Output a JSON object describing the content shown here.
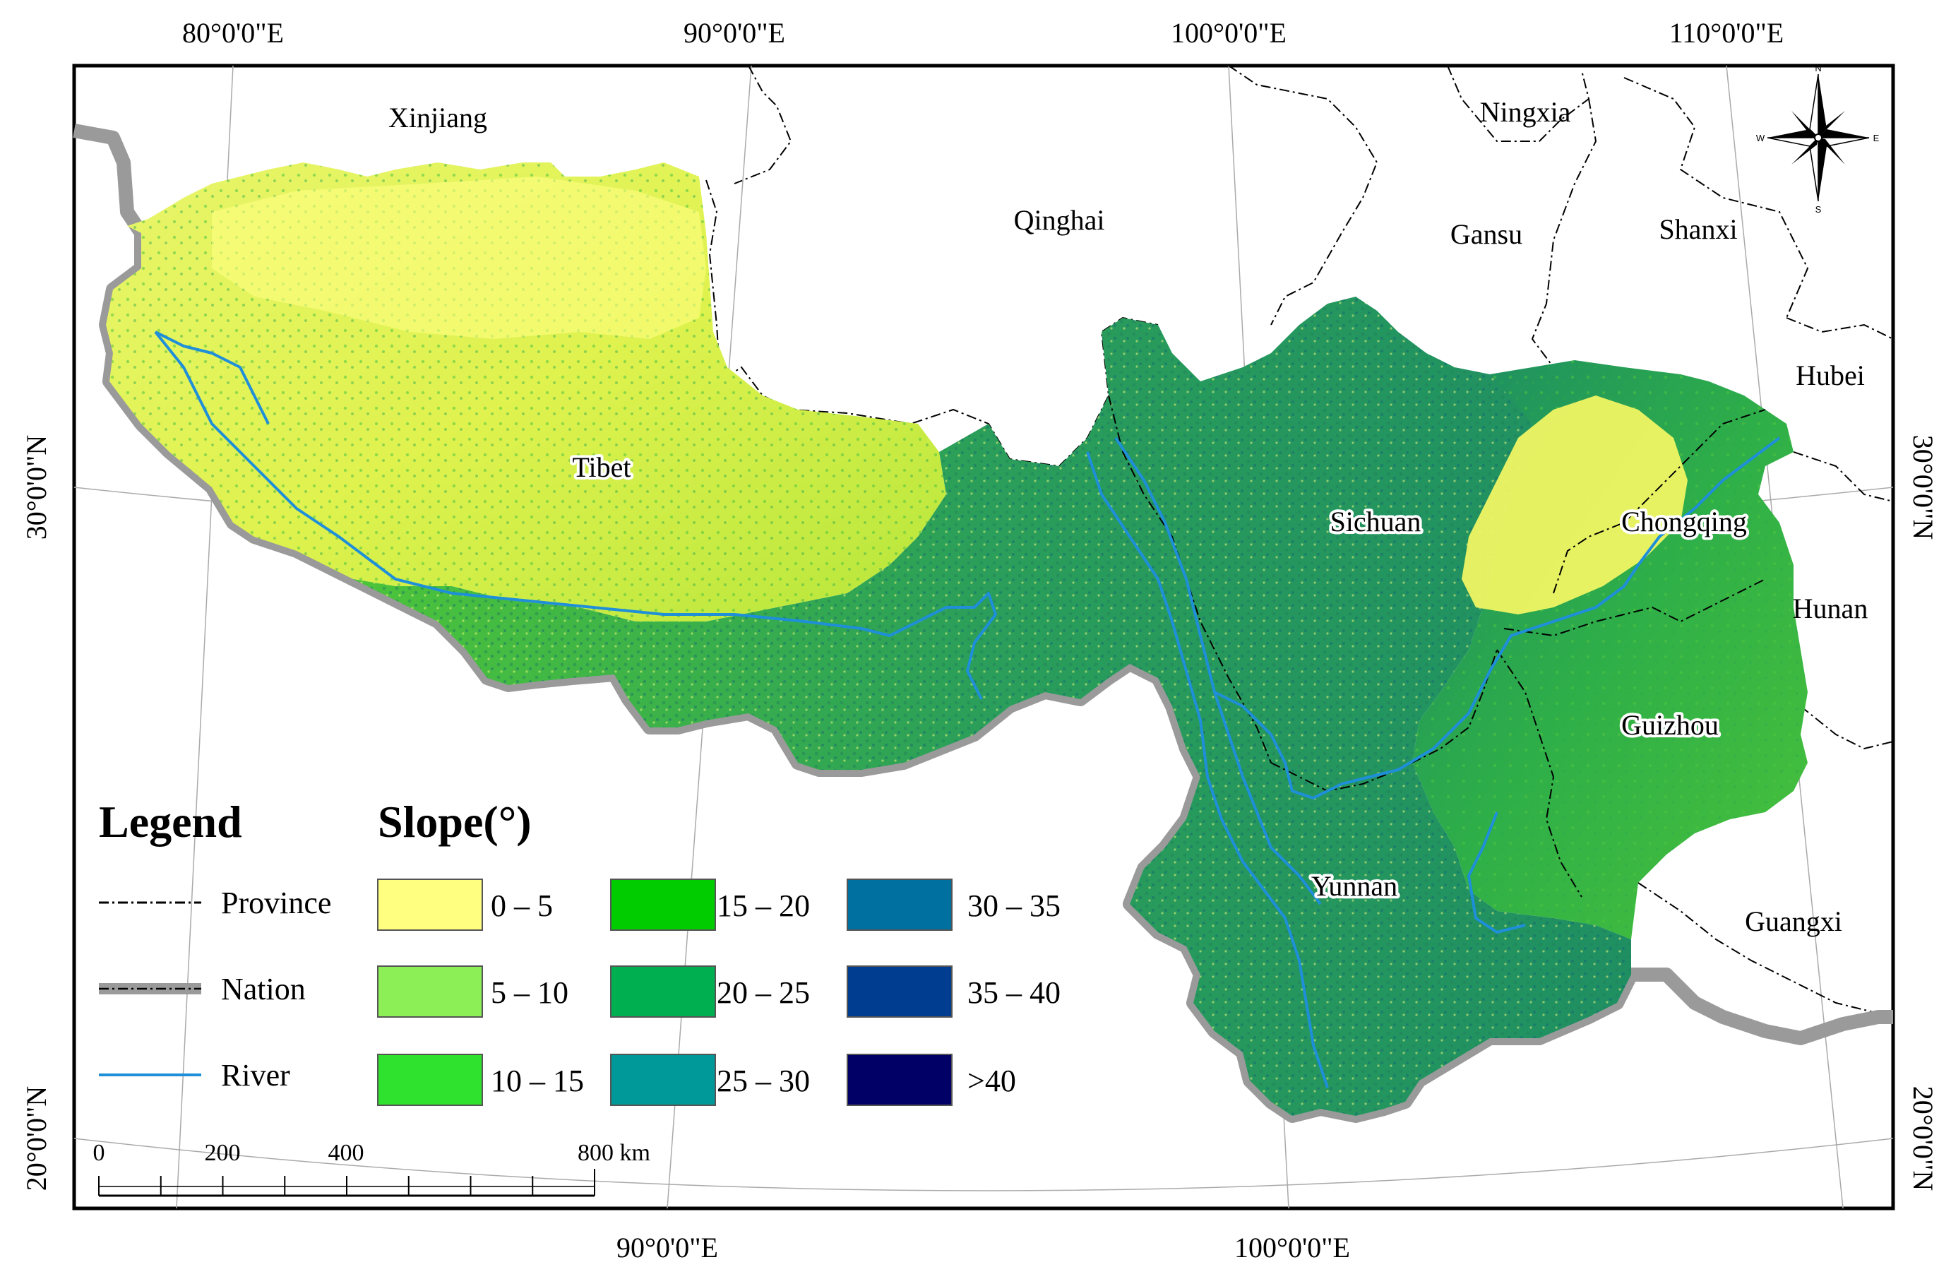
{
  "map": {
    "top_longitudes": [
      "80°0'0\"E",
      "90°0'0\"E",
      "100°0'0\"E",
      "110°0'0\"E"
    ],
    "bottom_longitudes": [
      "90°0'0\"E",
      "100°0'0\"E"
    ],
    "left_latitudes": [
      "30°0'0\"N",
      "20°0'0\"N"
    ],
    "right_latitudes": [
      "30°0'0\"N",
      "20°0'0\"N"
    ],
    "places": {
      "xinjiang": "Xinjiang",
      "qinghai": "Qinghai",
      "ningxia": "Ningxia",
      "gansu": "Gansu",
      "shanxi": "Shanxi",
      "hubei": "Hubei",
      "tibet": "Tibet",
      "sichuan": "Sichuan",
      "chongqing": "Chongqing",
      "hunan": "Hunan",
      "guizhou": "Guizhou",
      "yunnan": "Yunnan",
      "guangxi": "Guangxi"
    },
    "compass": {
      "n": "N",
      "s": "S",
      "e": "E",
      "w": "W"
    }
  },
  "legend": {
    "title": "Legend",
    "items": {
      "province": "Province",
      "nation": "Nation",
      "river": "River"
    },
    "slope_title": "Slope(°)",
    "slope_classes": [
      {
        "label": "0 – 5",
        "color": "#FFFF80"
      },
      {
        "label": "5 – 10",
        "color": "#8CEF55"
      },
      {
        "label": "10 – 15",
        "color": "#2EE22E"
      },
      {
        "label": "15 – 20",
        "color": "#00CC00"
      },
      {
        "label": "20 – 25",
        "color": "#00B050"
      },
      {
        "label": "25 – 30",
        "color": "#009999"
      },
      {
        "label": "30 – 35",
        "color": "#0070A0"
      },
      {
        "label": "35 – 40",
        "color": "#003C8F"
      },
      {
        "label": ">40",
        "color": "#000066"
      }
    ],
    "scale": {
      "ticks": [
        "0",
        "200",
        "400",
        "800 km"
      ]
    }
  },
  "colors": {
    "river": "#1E8FD8",
    "nation_border": "#9A9A9A",
    "province_border": "#000000"
  }
}
